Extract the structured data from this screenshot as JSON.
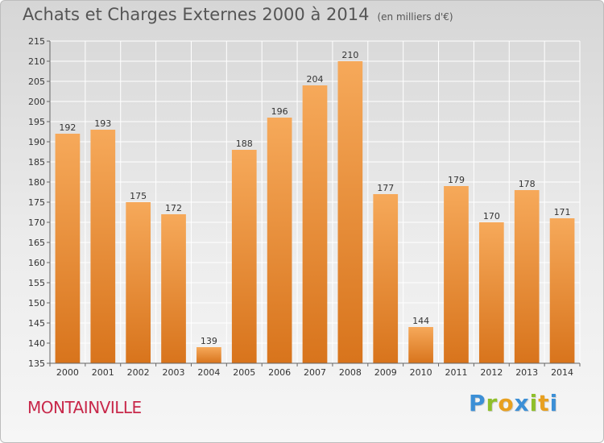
{
  "header": {
    "title": "Achats et Charges Externes 2000 à 2014",
    "unit": "(en milliers d'€)"
  },
  "footer": {
    "town": "MONTAINVILLE",
    "logo_letters": [
      "P",
      "r",
      "o",
      "x",
      "i",
      "t",
      "i"
    ],
    "logo_colors": [
      "#3c8fd6",
      "#8fbf2a",
      "#e8a020",
      "#3c8fd6",
      "#8fbf2a",
      "#e8a020",
      "#3c8fd6"
    ]
  },
  "chart_data": {
    "type": "bar",
    "title": "Achats et Charges Externes 2000 à 2014",
    "subtitle": "(en milliers d'€)",
    "categories": [
      "2000",
      "2001",
      "2002",
      "2003",
      "2004",
      "2005",
      "2006",
      "2007",
      "2008",
      "2009",
      "2010",
      "2011",
      "2012",
      "2013",
      "2014"
    ],
    "values": [
      192,
      193,
      175,
      172,
      139,
      188,
      196,
      204,
      210,
      177,
      144,
      179,
      170,
      178,
      171
    ],
    "ylim": [
      135,
      215
    ],
    "yticks": [
      135,
      140,
      145,
      150,
      155,
      160,
      165,
      170,
      175,
      180,
      185,
      190,
      195,
      200,
      205,
      210,
      215
    ],
    "grid": true,
    "bar_color_top": "#f6a95a",
    "bar_color_bottom": "#d8741c"
  }
}
